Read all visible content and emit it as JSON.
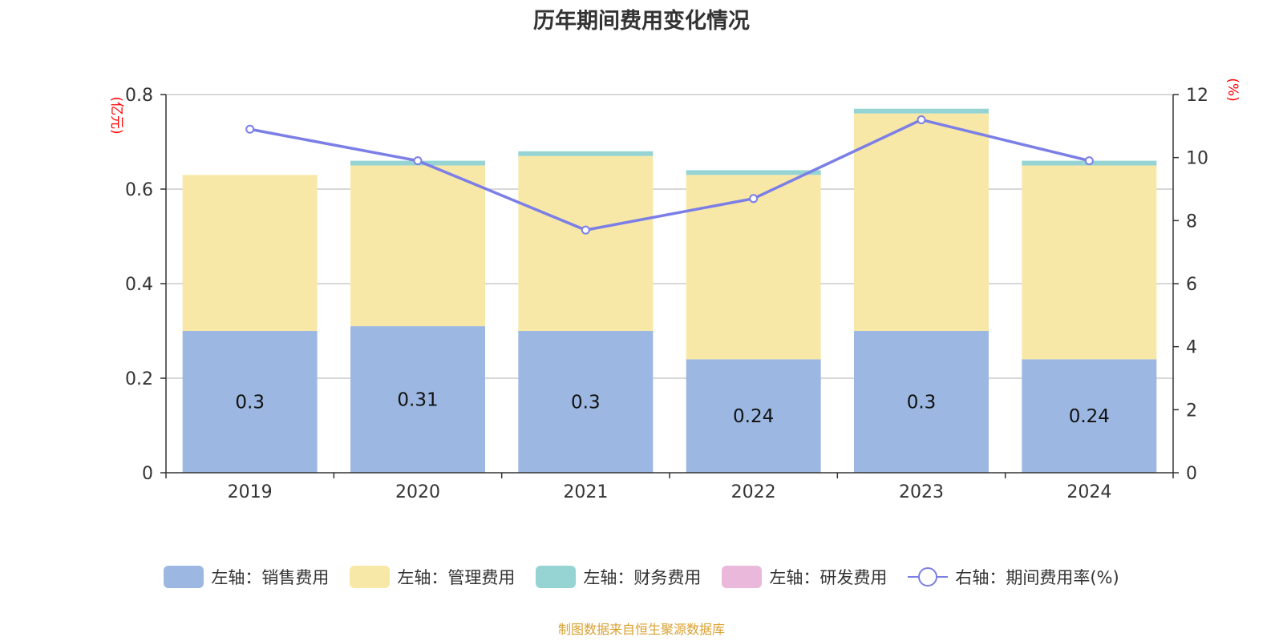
{
  "title": "历年期间费用变化情况",
  "source": "制图数据来自恒生聚源数据库",
  "colors": {
    "sales": "#9cb8e2",
    "admin": "#f8e8a8",
    "finance": "#96d4d4",
    "rd": "#e9b8da",
    "rate": "#7b7ee6",
    "axis_unit": "#ff0000",
    "source": "#d9a030",
    "grid": "#cccccc"
  },
  "chart_data": {
    "type": "bar",
    "stacked": true,
    "categories": [
      "2019",
      "2020",
      "2021",
      "2022",
      "2023",
      "2024"
    ],
    "y_left": {
      "label": "(亿元)",
      "min": 0,
      "max": 0.8,
      "ticks": [
        0,
        0.2,
        0.4,
        0.6,
        0.8
      ]
    },
    "y_right": {
      "label": "(%)",
      "min": 0,
      "max": 12,
      "ticks": [
        0,
        2,
        4,
        6,
        8,
        10,
        12
      ]
    },
    "grid": true,
    "legend_position": "bottom",
    "series": [
      {
        "name": "左轴：销售费用",
        "type": "bar",
        "axis": "left",
        "color_key": "sales",
        "values": [
          0.3,
          0.31,
          0.3,
          0.24,
          0.3,
          0.24
        ],
        "labels": [
          "0.3",
          "0.31",
          "0.3",
          "0.24",
          "0.3",
          "0.24"
        ]
      },
      {
        "name": "左轴：管理费用",
        "type": "bar",
        "axis": "left",
        "color_key": "admin",
        "values": [
          0.33,
          0.34,
          0.37,
          0.39,
          0.46,
          0.41
        ]
      },
      {
        "name": "左轴：财务费用",
        "type": "bar",
        "axis": "left",
        "color_key": "finance",
        "values": [
          0.0,
          0.01,
          0.01,
          0.01,
          0.01,
          0.01
        ]
      },
      {
        "name": "左轴：研发费用",
        "type": "bar",
        "axis": "left",
        "color_key": "rd",
        "values": [
          0,
          0,
          0,
          0,
          0,
          0
        ]
      },
      {
        "name": "右轴：期间费用率(%)",
        "type": "line",
        "axis": "right",
        "color_key": "rate",
        "values": [
          10.9,
          9.9,
          7.7,
          8.7,
          11.2,
          9.9
        ]
      }
    ]
  }
}
